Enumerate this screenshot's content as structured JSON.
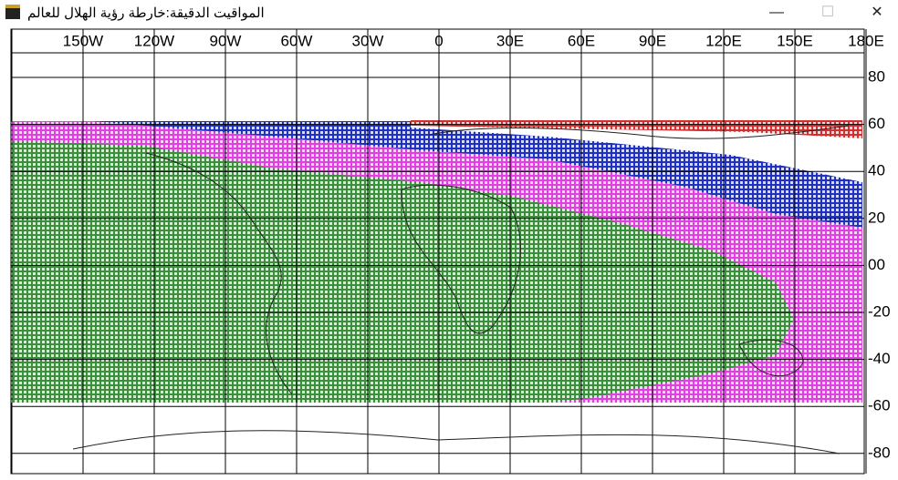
{
  "window": {
    "title": "المواقيت الدقيقة:خارطة رؤية الهلال للعالم"
  },
  "map": {
    "lon_labels": [
      "150W",
      "120W",
      "90W",
      "60W",
      "30W",
      "0",
      "30E",
      "60E",
      "90E",
      "120E",
      "150E",
      "180E"
    ],
    "lat_labels": [
      "80",
      "60",
      "40",
      "20",
      "00",
      "-20",
      "-40",
      "-60",
      "-80"
    ]
  }
}
